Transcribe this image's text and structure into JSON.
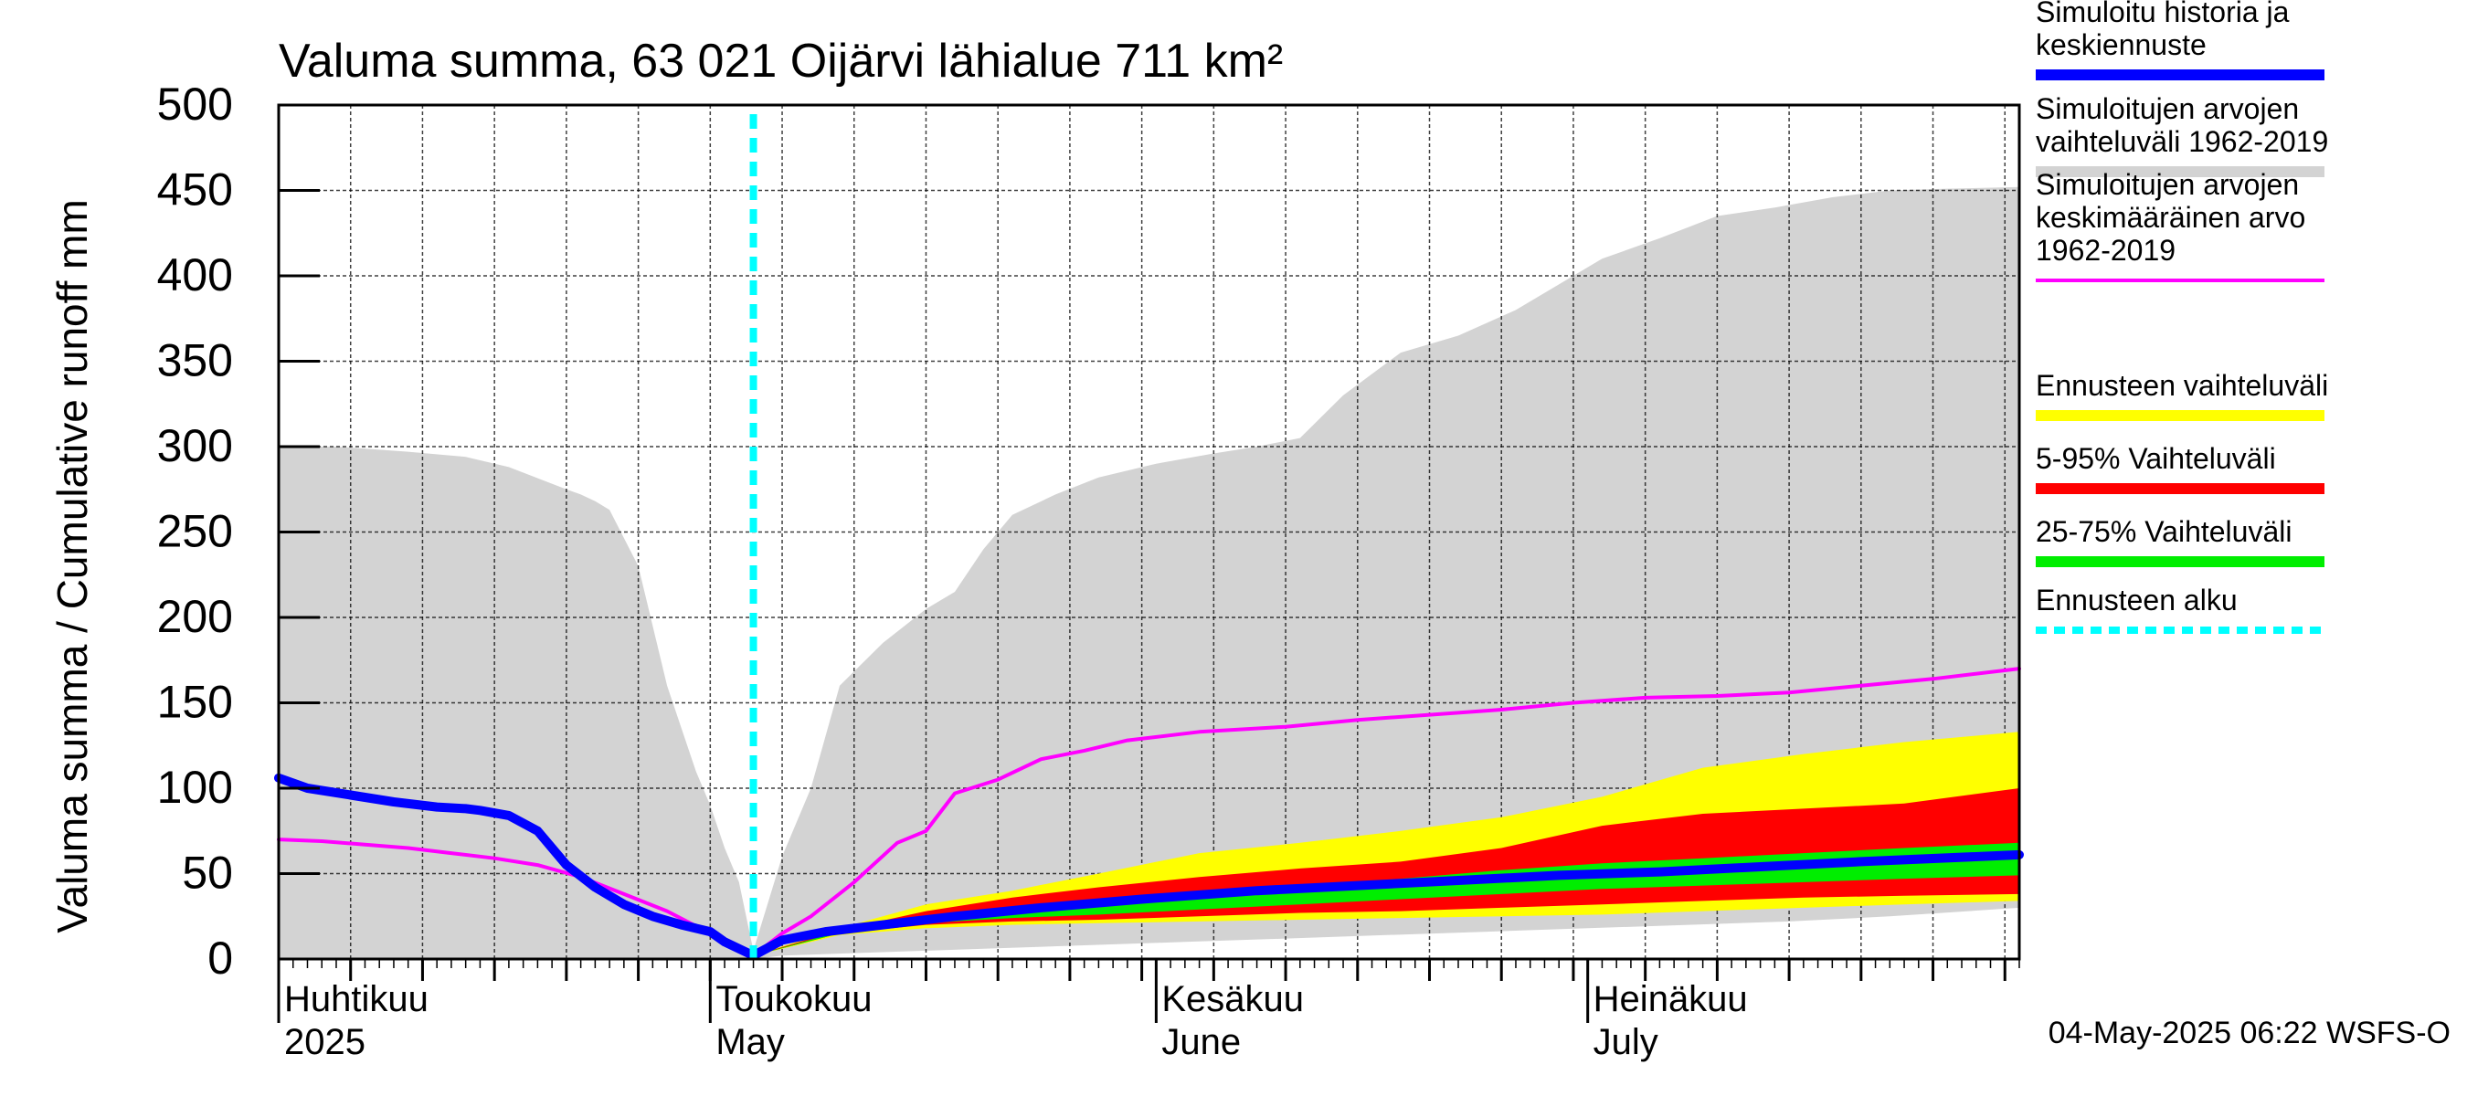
{
  "chart_data": {
    "type": "area",
    "title": "Valuma summa, 63 021 Oijärvi lähialue 711 km²",
    "ylabel": "Valuma summa / Cumulative runoff    mm",
    "ylim": [
      0,
      500
    ],
    "yticks": [
      0,
      50,
      100,
      150,
      200,
      250,
      300,
      350,
      400,
      450,
      500
    ],
    "xlim": [
      "2025-04-01",
      "2025-07-31"
    ],
    "month_labels": [
      {
        "date": "2025-04-01",
        "fi": "Huhtikuu",
        "en": "2025"
      },
      {
        "date": "2025-05-01",
        "fi": "Toukokuu",
        "en": "May"
      },
      {
        "date": "2025-06-01",
        "fi": "Kesäkuu",
        "en": "June"
      },
      {
        "date": "2025-07-01",
        "fi": "Heinäkuu",
        "en": "July"
      }
    ],
    "forecast_start": "2025-05-04",
    "footer": "04-May-2025 06:22 WSFS-O",
    "grid": true,
    "legend_placement": "right",
    "legend": [
      {
        "key": "history",
        "label": [
          "Simuloitu historia ja",
          "keskiennuste"
        ],
        "color": "#0000ff",
        "style": "thick"
      },
      {
        "key": "range_hist",
        "label": [
          "Simuloitujen arvojen",
          "vaihteluväli 1962-2019"
        ],
        "color": "#d3d3d3",
        "style": "thick"
      },
      {
        "key": "mean_hist",
        "label": [
          "Simuloitujen arvojen",
          "keskimääräinen arvo",
          "   1962-2019"
        ],
        "color": "#ff00ff",
        "style": "thin"
      },
      {
        "key": "fc_range",
        "label": [
          "Ennusteen vaihteluväli"
        ],
        "color": "#ffff00",
        "style": "thick"
      },
      {
        "key": "p5_95",
        "label": [
          "5-95% Vaihteluväli"
        ],
        "color": "#ff0000",
        "style": "thick"
      },
      {
        "key": "p25_75",
        "label": [
          "25-75% Vaihteluväli"
        ],
        "color": "#00ee00",
        "style": "thick"
      },
      {
        "key": "fc_start",
        "label": [
          "Ennusteen alku"
        ],
        "color": "#00ffff",
        "style": "dashed"
      }
    ],
    "series": [
      {
        "name": "Simuloitujen arvojen vaihteluväli 1962-2019 (max)",
        "key": "range_max",
        "x": [
          "2025-04-01",
          "2025-04-05",
          "2025-04-10",
          "2025-04-14",
          "2025-04-17",
          "2025-04-21",
          "2025-04-22",
          "2025-04-23",
          "2025-04-24",
          "2025-04-26",
          "2025-04-28",
          "2025-04-30",
          "2025-05-01",
          "2025-05-02",
          "2025-05-03",
          "2025-05-04",
          "2025-05-06",
          "2025-05-08",
          "2025-05-10",
          "2025-05-13",
          "2025-05-16",
          "2025-05-18",
          "2025-05-20",
          "2025-05-21",
          "2025-05-22",
          "2025-05-25",
          "2025-05-28",
          "2025-06-01",
          "2025-06-05",
          "2025-06-08",
          "2025-06-11",
          "2025-06-14",
          "2025-06-18",
          "2025-06-22",
          "2025-06-26",
          "2025-06-30",
          "2025-07-02",
          "2025-07-06",
          "2025-07-10",
          "2025-07-14",
          "2025-07-18",
          "2025-07-22",
          "2025-07-26",
          "2025-07-31"
        ],
        "values": [
          300,
          300,
          297,
          294,
          288,
          275,
          272,
          268,
          263,
          230,
          160,
          110,
          90,
          65,
          45,
          5,
          60,
          100,
          160,
          185,
          205,
          215,
          240,
          250,
          260,
          272,
          282,
          290,
          296,
          300,
          305,
          330,
          355,
          365,
          380,
          400,
          410,
          422,
          435,
          440,
          446,
          450,
          451,
          452
        ]
      },
      {
        "name": "Simuloitujen arvojen vaihteluväli 1962-2019 (min)",
        "key": "range_min",
        "x": [
          "2025-04-01",
          "2025-04-28",
          "2025-05-03",
          "2025-05-04",
          "2025-05-06",
          "2025-05-13",
          "2025-05-20",
          "2025-05-27",
          "2025-06-03",
          "2025-06-10",
          "2025-06-17",
          "2025-06-24",
          "2025-07-01",
          "2025-07-08",
          "2025-07-15",
          "2025-07-22",
          "2025-07-31"
        ],
        "values": [
          0,
          0,
          0,
          0,
          2,
          4,
          6,
          8,
          10,
          12,
          14,
          16,
          18,
          20,
          22,
          25,
          30
        ]
      },
      {
        "name": "Simuloitujen arvojen keskimääräinen arvo 1962-2019",
        "key": "mean",
        "x": [
          "2025-04-01",
          "2025-04-04",
          "2025-04-07",
          "2025-04-10",
          "2025-04-13",
          "2025-04-16",
          "2025-04-19",
          "2025-04-22",
          "2025-04-25",
          "2025-04-28",
          "2025-05-01",
          "2025-05-04",
          "2025-05-06",
          "2025-05-08",
          "2025-05-11",
          "2025-05-14",
          "2025-05-16",
          "2025-05-18",
          "2025-05-21",
          "2025-05-24",
          "2025-05-27",
          "2025-05-30",
          "2025-06-04",
          "2025-06-10",
          "2025-06-15",
          "2025-06-20",
          "2025-06-25",
          "2025-06-30",
          "2025-07-05",
          "2025-07-10",
          "2025-07-15",
          "2025-07-20",
          "2025-07-25",
          "2025-07-31"
        ],
        "values": [
          70,
          69,
          67,
          65,
          62,
          59,
          55,
          48,
          38,
          28,
          15,
          2,
          15,
          25,
          45,
          68,
          75,
          97,
          105,
          117,
          122,
          128,
          133,
          136,
          140,
          143,
          146,
          150,
          153,
          154,
          156,
          160,
          164,
          170
        ]
      },
      {
        "name": "Simuloitu historia ja keskiennuste",
        "key": "history",
        "x": [
          "2025-04-01",
          "2025-04-03",
          "2025-04-06",
          "2025-04-09",
          "2025-04-12",
          "2025-04-14",
          "2025-04-15",
          "2025-04-17",
          "2025-04-19",
          "2025-04-21",
          "2025-04-23",
          "2025-04-25",
          "2025-04-27",
          "2025-04-29",
          "2025-05-01",
          "2025-05-02",
          "2025-05-04",
          "2025-05-06",
          "2025-05-09",
          "2025-05-13",
          "2025-05-18",
          "2025-05-24",
          "2025-05-31",
          "2025-06-08",
          "2025-06-15",
          "2025-06-22",
          "2025-06-29",
          "2025-07-06",
          "2025-07-13",
          "2025-07-20",
          "2025-07-31"
        ],
        "values": [
          106,
          100,
          96,
          92,
          89,
          88,
          87,
          84,
          75,
          55,
          42,
          32,
          25,
          20,
          16,
          10,
          2,
          11,
          16,
          20,
          25,
          30,
          35,
          40,
          43,
          46,
          49,
          51,
          54,
          57,
          61
        ]
      },
      {
        "name": "Ennusteen vaihteluväli",
        "key": "fc_range",
        "x": [
          "2025-05-04",
          "2025-05-10",
          "2025-05-16",
          "2025-05-22",
          "2025-05-28",
          "2025-06-04",
          "2025-06-11",
          "2025-06-18",
          "2025-06-25",
          "2025-07-02",
          "2025-07-09",
          "2025-07-16",
          "2025-07-23",
          "2025-07-31"
        ],
        "upper": [
          2,
          18,
          32,
          40,
          50,
          62,
          68,
          75,
          83,
          95,
          112,
          120,
          127,
          133
        ],
        "lower": [
          2,
          14,
          18,
          20,
          21,
          22,
          23,
          24,
          25,
          26,
          28,
          30,
          32,
          34
        ]
      },
      {
        "name": "5-95% Vaihteluväli",
        "key": "p5_95",
        "x": [
          "2025-05-04",
          "2025-05-10",
          "2025-05-16",
          "2025-05-22",
          "2025-05-28",
          "2025-06-04",
          "2025-06-11",
          "2025-06-18",
          "2025-06-25",
          "2025-07-02",
          "2025-07-09",
          "2025-07-16",
          "2025-07-23",
          "2025-07-31"
        ],
        "upper": [
          2,
          17,
          28,
          36,
          42,
          48,
          53,
          57,
          65,
          78,
          85,
          88,
          91,
          100
        ],
        "lower": [
          2,
          15,
          20,
          22,
          23,
          25,
          27,
          28,
          30,
          32,
          34,
          36,
          37,
          38
        ]
      },
      {
        "name": "25-75% Vaihteluväli",
        "key": "p25_75",
        "x": [
          "2025-05-04",
          "2025-05-10",
          "2025-05-16",
          "2025-05-22",
          "2025-05-28",
          "2025-06-04",
          "2025-06-11",
          "2025-06-18",
          "2025-06-25",
          "2025-07-02",
          "2025-07-09",
          "2025-07-16",
          "2025-07-23",
          "2025-07-31"
        ],
        "upper": [
          2,
          16,
          24,
          30,
          34,
          38,
          42,
          47,
          52,
          56,
          59,
          62,
          65,
          68
        ],
        "lower": [
          2,
          15,
          21,
          24,
          26,
          29,
          32,
          35,
          38,
          41,
          43,
          45,
          47,
          49
        ]
      }
    ]
  }
}
